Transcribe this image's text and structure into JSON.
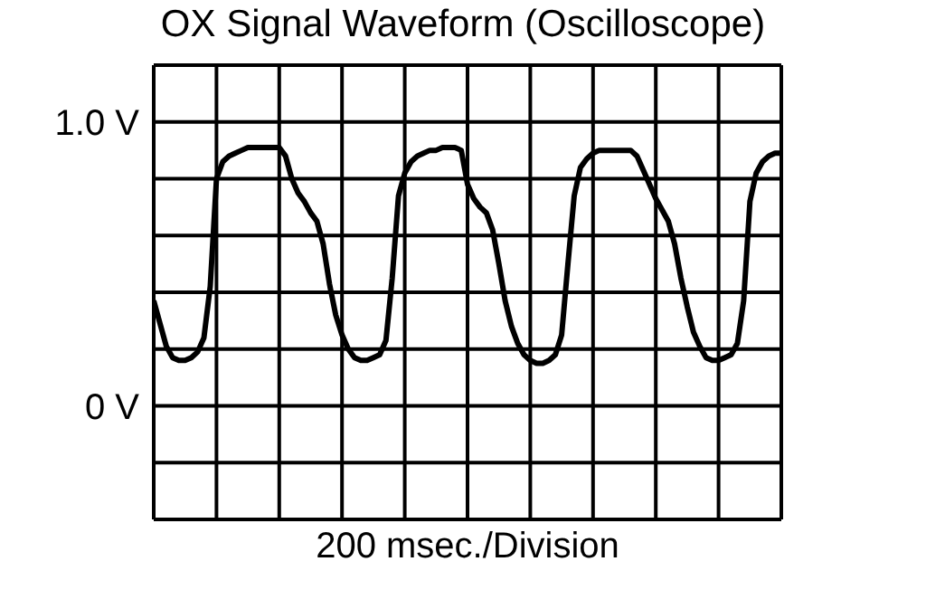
{
  "chart_data": {
    "type": "line",
    "title": "OX Signal Waveform (Oscilloscope)",
    "xlabel": "200 msec./Division",
    "categories": [
      null,
      null,
      null,
      null,
      null,
      null,
      null,
      null,
      null,
      null,
      null,
      null,
      null,
      null,
      null,
      null,
      null,
      null,
      null,
      null,
      null,
      null,
      null,
      null,
      null,
      null,
      null,
      null,
      null,
      null,
      null,
      null,
      null,
      null,
      null,
      null,
      null,
      null,
      null,
      null,
      null,
      null,
      null,
      null,
      null,
      null,
      null,
      null,
      null,
      null,
      null,
      null,
      null,
      null,
      null,
      null,
      null,
      null,
      null,
      null,
      null,
      null,
      null,
      null,
      null,
      null,
      null,
      null,
      null,
      null,
      null,
      null,
      null,
      null,
      null,
      null,
      null,
      null,
      null,
      null,
      null,
      null,
      null,
      null,
      null,
      null,
      null,
      null,
      null,
      null,
      null,
      null,
      null,
      null,
      null,
      null,
      null,
      null,
      null,
      null,
      null
    ],
    "series": [
      {
        "color": "#000000",
        "values": [
          0.37,
          0.29,
          0.21,
          0.17,
          0.16,
          0.16,
          0.17,
          0.19,
          0.24,
          0.42,
          0.8,
          0.86,
          0.88,
          0.89,
          0.9,
          0.91,
          0.91,
          0.91,
          0.91,
          0.91,
          0.91,
          0.88,
          0.8,
          0.75,
          0.72,
          0.68,
          0.65,
          0.57,
          0.43,
          0.32,
          0.25,
          0.2,
          0.17,
          0.16,
          0.16,
          0.17,
          0.18,
          0.23,
          0.45,
          0.74,
          0.82,
          0.86,
          0.88,
          0.89,
          0.9,
          0.9,
          0.91,
          0.91,
          0.91,
          0.9,
          0.78,
          0.73,
          0.7,
          0.68,
          0.62,
          0.5,
          0.37,
          0.28,
          0.22,
          0.18,
          0.16,
          0.15,
          0.15,
          0.16,
          0.18,
          0.25,
          0.5,
          0.74,
          0.84,
          0.87,
          0.89,
          0.9,
          0.9,
          0.9,
          0.9,
          0.9,
          0.9,
          0.88,
          0.83,
          0.78,
          0.73,
          0.69,
          0.65,
          0.57,
          0.45,
          0.35,
          0.26,
          0.21,
          0.17,
          0.16,
          0.16,
          0.17,
          0.18,
          0.22,
          0.37,
          0.72,
          0.82,
          0.86,
          0.88,
          0.89,
          0.89
        ]
      }
    ],
    "ylim": [
      -0.4,
      1.2
    ],
    "yticks": [
      {
        "value": -0.4,
        "label": null
      },
      {
        "value": -0.2,
        "label": null
      },
      {
        "value": 0,
        "label": "0 V"
      },
      {
        "value": 0.2,
        "label": null
      },
      {
        "value": 0.4,
        "label": null
      },
      {
        "value": 0.6,
        "label": null
      },
      {
        "value": 0.8,
        "label": null
      },
      {
        "value": 1.0,
        "label": "1.0 V"
      },
      {
        "value": 1.2,
        "label": null
      }
    ],
    "grid": true,
    "marker": "none",
    "line_style": "solid"
  }
}
